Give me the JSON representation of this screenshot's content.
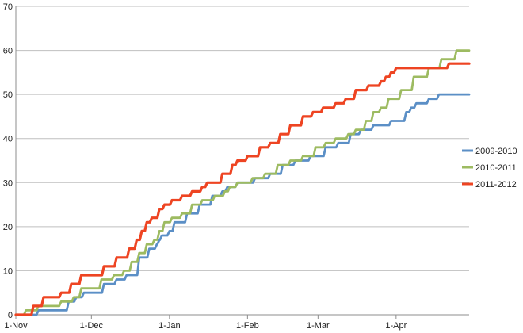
{
  "chart_data": {
    "type": "line",
    "title": "",
    "xlabel": "",
    "ylabel": "",
    "ylim": [
      0,
      70
    ],
    "yticks": [
      0,
      10,
      20,
      30,
      40,
      50,
      60,
      70
    ],
    "xlim": [
      "2000-11-01",
      "2001-04-30"
    ],
    "xticks": [
      {
        "date": "2000-11-01",
        "label": "1-Nov"
      },
      {
        "date": "2000-12-01",
        "label": "1-Dec"
      },
      {
        "date": "2001-01-01",
        "label": "1-Jan"
      },
      {
        "date": "2001-02-01",
        "label": "1-Feb"
      },
      {
        "date": "2001-03-01",
        "label": "1-Mar"
      },
      {
        "date": "2001-04-01",
        "label": "1-Apr"
      }
    ],
    "grid": true,
    "legend": "right",
    "series": [
      {
        "name": "2009-2010",
        "color": "#5b8fc6",
        "x": [
          "2000-11-01",
          "2000-11-10",
          "2000-11-22",
          "2000-11-25",
          "2000-11-28",
          "2000-12-06",
          "2000-12-11",
          "2000-12-15",
          "2000-12-20",
          "2000-12-24",
          "2000-12-27",
          "2000-12-28",
          "2000-12-29",
          "2001-01-01",
          "2001-01-03",
          "2001-01-08",
          "2001-01-13",
          "2001-01-18",
          "2001-01-22",
          "2001-01-24",
          "2001-01-28",
          "2001-02-04",
          "2001-02-10",
          "2001-02-15",
          "2001-02-20",
          "2001-02-26",
          "2001-03-04",
          "2001-03-09",
          "2001-03-14",
          "2001-03-18",
          "2001-03-23",
          "2001-03-30",
          "2001-04-05",
          "2001-04-07",
          "2001-04-09",
          "2001-04-14",
          "2001-04-18",
          "2001-04-30"
        ],
        "values": [
          0,
          1,
          3,
          4,
          5,
          7,
          8,
          9,
          13,
          15,
          16,
          17,
          18,
          19,
          21,
          23,
          25,
          27,
          28,
          29,
          30,
          31,
          32,
          34,
          35,
          36,
          38,
          39,
          41,
          42,
          43,
          44,
          46,
          47,
          48,
          49,
          50,
          50
        ]
      },
      {
        "name": "2010-2011",
        "color": "#9dbb61",
        "x": [
          "2000-11-01",
          "2000-11-05",
          "2000-11-10",
          "2000-11-19",
          "2000-11-24",
          "2000-11-27",
          "2000-12-05",
          "2000-12-10",
          "2000-12-14",
          "2000-12-17",
          "2000-12-20",
          "2000-12-23",
          "2000-12-26",
          "2000-12-28",
          "2000-12-30",
          "2001-01-02",
          "2001-01-06",
          "2001-01-10",
          "2001-01-14",
          "2001-01-19",
          "2001-01-23",
          "2001-01-25",
          "2001-01-28",
          "2001-02-03",
          "2001-02-08",
          "2001-02-13",
          "2001-02-18",
          "2001-02-23",
          "2001-02-28",
          "2001-03-04",
          "2001-03-08",
          "2001-03-13",
          "2001-03-16",
          "2001-03-20",
          "2001-03-23",
          "2001-03-26",
          "2001-03-29",
          "2001-04-03",
          "2001-04-08",
          "2001-04-14",
          "2001-04-19",
          "2001-04-25",
          "2001-04-30"
        ],
        "values": [
          0,
          1,
          2,
          3,
          4,
          6,
          8,
          9,
          10,
          12,
          14,
          16,
          17,
          19,
          21,
          22,
          23,
          25,
          26,
          27,
          28,
          29,
          30,
          31,
          32,
          34,
          35,
          36,
          38,
          39,
          40,
          41,
          42,
          44,
          46,
          47,
          49,
          51,
          54,
          56,
          58,
          60,
          60
        ]
      },
      {
        "name": "2011-2012",
        "color": "#ee4422",
        "x": [
          "2000-11-01",
          "2000-11-08",
          "2000-11-12",
          "2000-11-19",
          "2000-11-23",
          "2000-11-27",
          "2000-12-06",
          "2000-12-11",
          "2000-12-16",
          "2000-12-19",
          "2000-12-21",
          "2000-12-23",
          "2000-12-25",
          "2000-12-28",
          "2000-12-30",
          "2001-01-02",
          "2001-01-06",
          "2001-01-10",
          "2001-01-14",
          "2001-01-16",
          "2001-01-22",
          "2001-01-26",
          "2001-01-28",
          "2001-02-01",
          "2001-02-06",
          "2001-02-10",
          "2001-02-14",
          "2001-02-18",
          "2001-02-23",
          "2001-02-27",
          "2001-03-03",
          "2001-03-08",
          "2001-03-12",
          "2001-03-16",
          "2001-03-21",
          "2001-03-26",
          "2001-03-28",
          "2001-03-30",
          "2001-04-01",
          "2001-04-03",
          "2001-04-06",
          "2001-04-22",
          "2001-04-30"
        ],
        "values": [
          0,
          2,
          4,
          5,
          7,
          9,
          11,
          13,
          15,
          17,
          19,
          21,
          22,
          24,
          25,
          26,
          27,
          28,
          29,
          30,
          32,
          34,
          35,
          36,
          38,
          39,
          41,
          43,
          45,
          46,
          47,
          48,
          49,
          51,
          52,
          53,
          54,
          55,
          56,
          56,
          56,
          57,
          57
        ]
      }
    ]
  }
}
